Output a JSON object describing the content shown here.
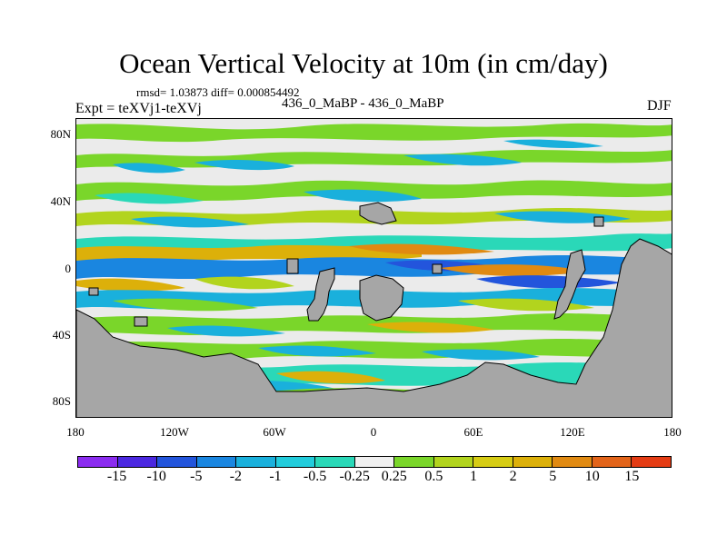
{
  "title": "Ocean Vertical Velocity at 10m (in cm/day)",
  "stats": "rmsd= 1.03873 diff= 0.000854492",
  "experiment": "Expt = teXVj1-teXVj",
  "runs": "436_0_MaBP - 436_0_MaBP",
  "season": "DJF",
  "y_axis": {
    "labels": [
      "80N",
      "40N",
      "0",
      "40S",
      "80S"
    ]
  },
  "x_axis": {
    "labels": [
      "180",
      "120W",
      "60W",
      "0",
      "60E",
      "120E",
      "180"
    ]
  },
  "colorbar": {
    "colors": [
      "#8b2cf0",
      "#4b28e0",
      "#2355dc",
      "#1a86e0",
      "#1ab0dc",
      "#22ccdc",
      "#2ad8b8",
      "#f0f0f0",
      "#7ad62a",
      "#b2d41e",
      "#d6cc14",
      "#dcb00a",
      "#e08a12",
      "#e2641a",
      "#e43c14"
    ],
    "labels": [
      "-15",
      "-10",
      "-5",
      "-2",
      "-1",
      "-0.5",
      "-0.25",
      "0.25",
      "0.5",
      "1",
      "2",
      "5",
      "10",
      "15"
    ]
  },
  "colors": {
    "land": "#a6a6a6",
    "ocean_zero": "#ebebeb"
  }
}
